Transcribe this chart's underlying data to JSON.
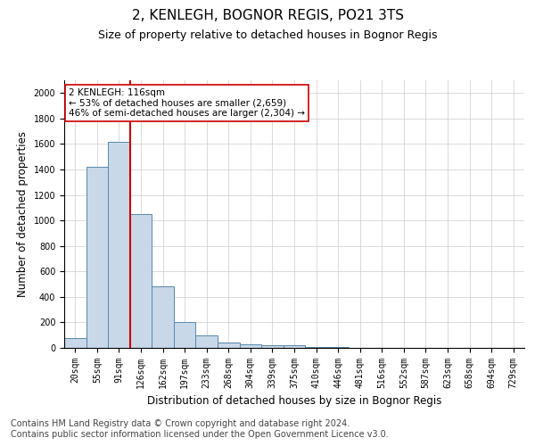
{
  "title": "2, KENLEGH, BOGNOR REGIS, PO21 3TS",
  "subtitle": "Size of property relative to detached houses in Bognor Regis",
  "xlabel": "Distribution of detached houses by size in Bognor Regis",
  "ylabel": "Number of detached properties",
  "categories": [
    "20sqm",
    "55sqm",
    "91sqm",
    "126sqm",
    "162sqm",
    "197sqm",
    "233sqm",
    "268sqm",
    "304sqm",
    "339sqm",
    "375sqm",
    "410sqm",
    "446sqm",
    "481sqm",
    "516sqm",
    "552sqm",
    "587sqm",
    "623sqm",
    "658sqm",
    "694sqm",
    "729sqm"
  ],
  "values": [
    75,
    1420,
    1620,
    1050,
    480,
    200,
    100,
    40,
    30,
    20,
    20,
    10,
    5,
    3,
    2,
    1,
    1,
    1,
    0,
    0,
    0
  ],
  "bar_color": "#c8d8e8",
  "bar_edge_color": "#5588aa",
  "vline_color": "#cc0000",
  "annotation_text": "2 KENLEGH: 116sqm\n← 53% of detached houses are smaller (2,659)\n46% of semi-detached houses are larger (2,304) →",
  "annotation_box_color": "#ffffff",
  "annotation_box_edge": "#cc0000",
  "ylim": [
    0,
    2100
  ],
  "yticks": [
    0,
    200,
    400,
    600,
    800,
    1000,
    1200,
    1400,
    1600,
    1800,
    2000
  ],
  "footer1": "Contains HM Land Registry data © Crown copyright and database right 2024.",
  "footer2": "Contains public sector information licensed under the Open Government Licence v3.0.",
  "title_fontsize": 11,
  "subtitle_fontsize": 9,
  "axis_label_fontsize": 8.5,
  "tick_fontsize": 7,
  "footer_fontsize": 7
}
